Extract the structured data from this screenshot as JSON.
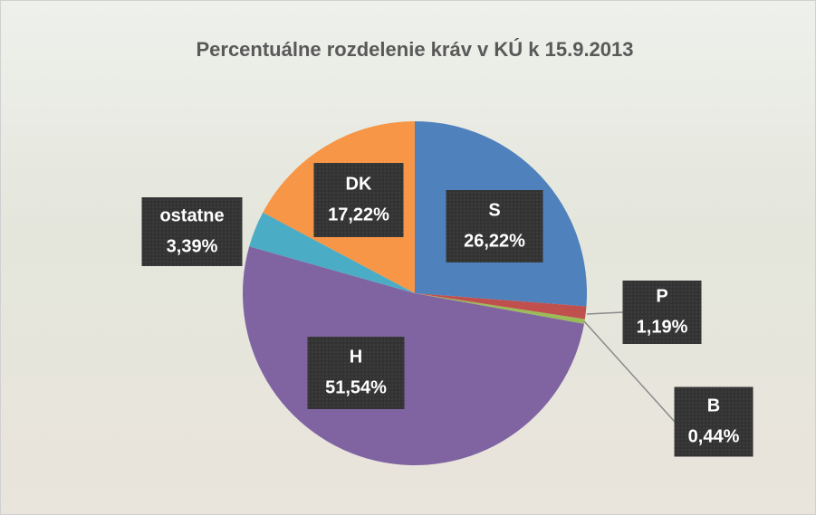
{
  "chart_data": {
    "type": "pie",
    "title": "Percentuálne rozdelenie kráv v KÚ k 15.9.2013",
    "categories": [
      "S",
      "P",
      "B",
      "H",
      "ostatne",
      "DK"
    ],
    "values": [
      26.22,
      1.19,
      0.44,
      51.54,
      3.39,
      17.22
    ],
    "value_labels": [
      "26,22%",
      "1,19%",
      "0,44%",
      "51,54%",
      "3,39%",
      "17,22%"
    ],
    "colors": [
      "#4f81bd",
      "#c0504d",
      "#9bbb59",
      "#8064a2",
      "#4bacc6",
      "#f79646"
    ]
  }
}
